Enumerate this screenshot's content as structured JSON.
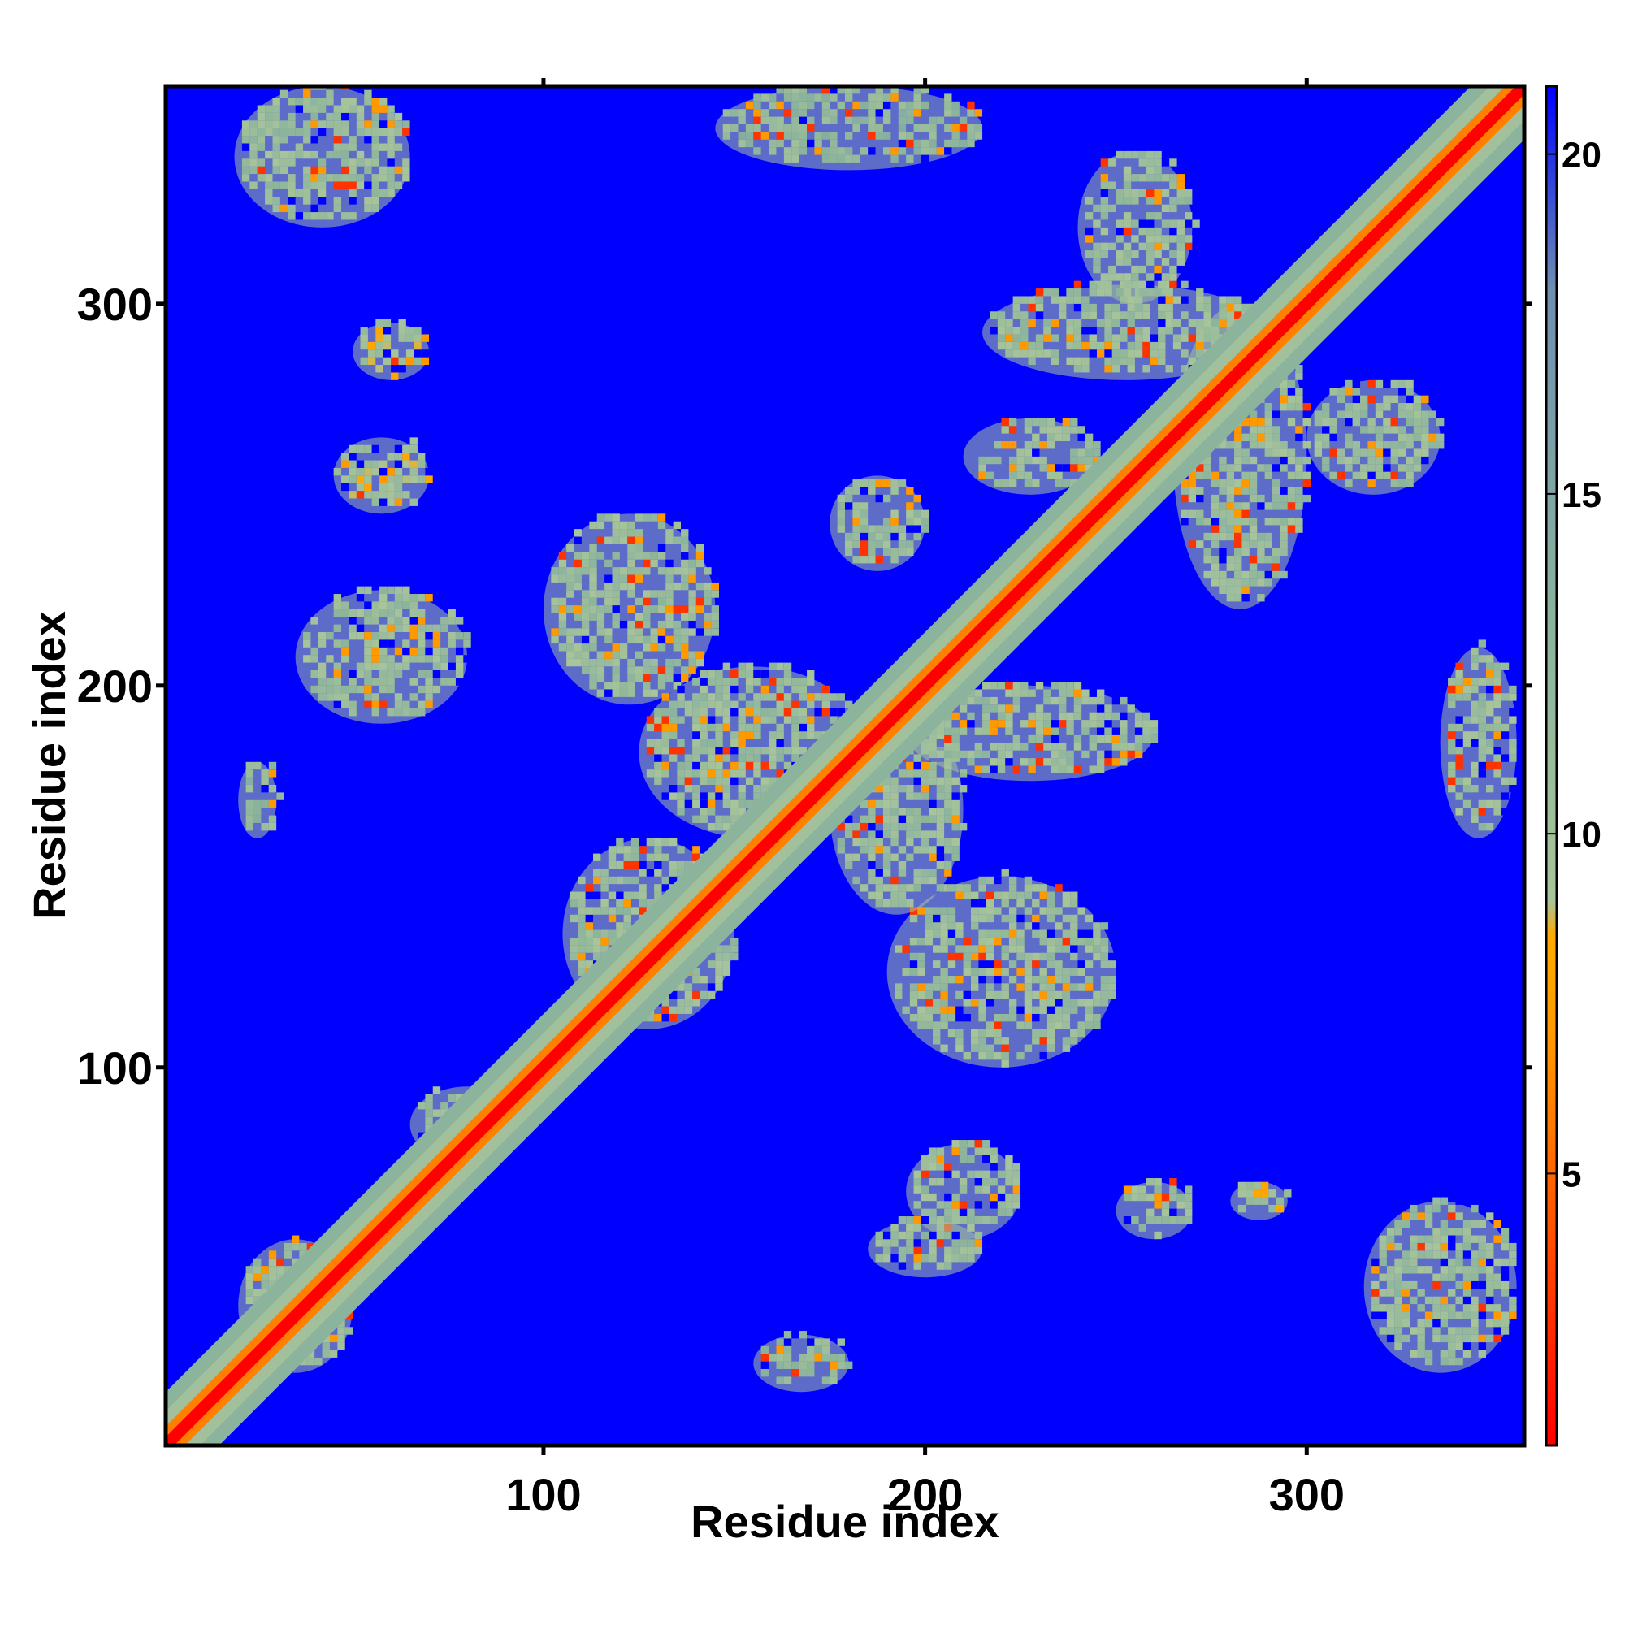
{
  "chart_data": {
    "type": "heatmap",
    "title": "",
    "xlabel": "Residue index",
    "ylabel": "Residue index",
    "n_residues": 357,
    "xlim": [
      1,
      357
    ],
    "ylim": [
      1,
      357
    ],
    "x_ticks": [
      100,
      200,
      300
    ],
    "y_ticks": [
      100,
      200,
      300
    ],
    "colorbar": {
      "ticks": [
        5,
        10,
        15,
        20
      ],
      "range": [
        1,
        21
      ],
      "stops": [
        {
          "value": 1,
          "color": "#ff0000"
        },
        {
          "value": 3,
          "color": "#ff3300"
        },
        {
          "value": 5,
          "color": "#ff6600"
        },
        {
          "value": 7,
          "color": "#ff9900"
        },
        {
          "value": 8.5,
          "color": "#ffaa00"
        },
        {
          "value": 9,
          "color": "#a8c49a"
        },
        {
          "value": 13,
          "color": "#8cb49c"
        },
        {
          "value": 18,
          "color": "#6f8fb0"
        },
        {
          "value": 21,
          "color": "#0000ff"
        }
      ]
    },
    "background_color": "#0000ff",
    "diagonal_color": "#ff0000",
    "contact_color": "#a8c49a",
    "contact_regions": [
      {
        "x": [
          19,
          65
        ],
        "y": [
          320,
          357
        ],
        "level": 11
      },
      {
        "x": [
          50,
          70
        ],
        "y": [
          280,
          295
        ],
        "level": 10
      },
      {
        "x": [
          45,
          70
        ],
        "y": [
          245,
          265
        ],
        "level": 10
      },
      {
        "x": [
          35,
          80
        ],
        "y": [
          190,
          225
        ],
        "level": 11
      },
      {
        "x": [
          20,
          30
        ],
        "y": [
          160,
          180
        ],
        "level": 12
      },
      {
        "x": [
          145,
          215
        ],
        "y": [
          335,
          357
        ],
        "level": 12
      },
      {
        "x": [
          100,
          145
        ],
        "y": [
          195,
          245
        ],
        "level": 11
      },
      {
        "x": [
          125,
          185
        ],
        "y": [
          160,
          205
        ],
        "level": 11
      },
      {
        "x": [
          105,
          150
        ],
        "y": [
          110,
          160
        ],
        "level": 11
      },
      {
        "x": [
          190,
          250
        ],
        "y": [
          100,
          150
        ],
        "level": 11
      },
      {
        "x": [
          175,
          210
        ],
        "y": [
          140,
          195
        ],
        "level": 11
      },
      {
        "x": [
          195,
          260
        ],
        "y": [
          175,
          200
        ],
        "level": 11
      },
      {
        "x": [
          175,
          200
        ],
        "y": [
          230,
          255
        ],
        "level": 11
      },
      {
        "x": [
          210,
          245
        ],
        "y": [
          250,
          270
        ],
        "level": 11
      },
      {
        "x": [
          215,
          290
        ],
        "y": [
          280,
          305
        ],
        "level": 11
      },
      {
        "x": [
          240,
          270
        ],
        "y": [
          300,
          340
        ],
        "level": 11
      },
      {
        "x": [
          265,
          300
        ],
        "y": [
          220,
          300
        ],
        "level": 11
      },
      {
        "x": [
          300,
          335
        ],
        "y": [
          250,
          280
        ],
        "level": 11
      },
      {
        "x": [
          335,
          355
        ],
        "y": [
          160,
          210
        ],
        "level": 11
      },
      {
        "x": [
          195,
          225
        ],
        "y": [
          55,
          80
        ],
        "level": 11
      },
      {
        "x": [
          185,
          215
        ],
        "y": [
          45,
          60
        ],
        "level": 11
      },
      {
        "x": [
          250,
          270
        ],
        "y": [
          55,
          70
        ],
        "level": 11
      },
      {
        "x": [
          280,
          295
        ],
        "y": [
          60,
          70
        ],
        "level": 10
      },
      {
        "x": [
          315,
          355
        ],
        "y": [
          20,
          65
        ],
        "level": 11
      },
      {
        "x": [
          155,
          180
        ],
        "y": [
          15,
          30
        ],
        "level": 12
      },
      {
        "x": [
          20,
          50
        ],
        "y": [
          20,
          55
        ],
        "level": 11
      },
      {
        "x": [
          65,
          95
        ],
        "y": [
          75,
          95
        ],
        "level": 11
      }
    ]
  }
}
